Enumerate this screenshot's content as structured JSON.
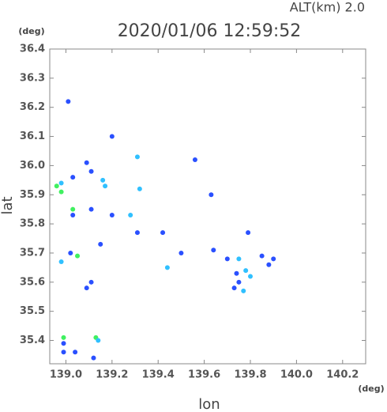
{
  "chart_data": {
    "type": "scatter",
    "title": "2020/01/06 12:59:52",
    "annotation": "ALT(km)  2.0",
    "y_unit": "(deg)",
    "x_unit": "(deg)",
    "y_label": "lat",
    "x_label": "lon",
    "xlim": [
      138.93,
      140.3
    ],
    "ylim": [
      35.32,
      36.4
    ],
    "xticks": [
      {
        "value": 139,
        "label": "139.0"
      },
      139.2,
      139.4,
      139.6,
      139.8,
      {
        "value": 140,
        "label": "140.0"
      },
      140.2
    ],
    "yticks": [
      35.4,
      35.5,
      35.6,
      35.7,
      35.8,
      35.9,
      {
        "value": 36,
        "label": "36.0"
      },
      36.1,
      36.2,
      36.3,
      36.4
    ],
    "x": [
      139.01,
      139.2,
      139.31,
      139.56,
      138.98,
      138.96,
      138.98,
      139.03,
      139.11,
      139.09,
      139.16,
      139.17,
      139.32,
      139.03,
      139.03,
      139.11,
      139.2,
      139.28,
      139.31,
      139.42,
      139.63,
      139.15,
      139.02,
      139.05,
      138.98,
      139.5,
      139.44,
      139.11,
      139.09,
      139.64,
      139.7,
      139.75,
      139.79,
      139.85,
      139.9,
      139.88,
      139.78,
      139.8,
      139.74,
      139.75,
      139.77,
      139.73,
      138.99,
      138.99,
      139.13,
      139.14,
      139.04,
      138.99,
      139.12
    ],
    "values": [
      36.22,
      36.1,
      36.03,
      36.02,
      35.94,
      35.93,
      35.91,
      35.96,
      35.98,
      36.01,
      35.95,
      35.93,
      35.92,
      35.85,
      35.83,
      35.85,
      35.83,
      35.83,
      35.77,
      35.77,
      35.9,
      35.73,
      35.7,
      35.69,
      35.67,
      35.7,
      35.65,
      35.6,
      35.58,
      35.71,
      35.68,
      35.68,
      35.77,
      35.69,
      35.68,
      35.66,
      35.64,
      35.62,
      35.63,
      35.6,
      35.57,
      35.58,
      35.41,
      35.39,
      35.41,
      35.4,
      35.36,
      35.36,
      35.34
    ],
    "colors": [
      "#2a50ff",
      "#2a50ff",
      "#30c0ff",
      "#2a50ff",
      "#30c0ff",
      "#40f060",
      "#40f060",
      "#2a50ff",
      "#2a50ff",
      "#2a50ff",
      "#30c0ff",
      "#30c0ff",
      "#30c0ff",
      "#40f060",
      "#2a50ff",
      "#2a50ff",
      "#2a50ff",
      "#30c0ff",
      "#2a50ff",
      "#2a50ff",
      "#2a50ff",
      "#2a50ff",
      "#2a50ff",
      "#40f060",
      "#30c0ff",
      "#2a50ff",
      "#30c0ff",
      "#2a50ff",
      "#2a50ff",
      "#2a50ff",
      "#2a50ff",
      "#30c0ff",
      "#2a50ff",
      "#2a50ff",
      "#2a50ff",
      "#2a50ff",
      "#30c0ff",
      "#30c0ff",
      "#2a50ff",
      "#2a50ff",
      "#30c0ff",
      "#2a50ff",
      "#40f060",
      "#2a50ff",
      "#40f060",
      "#30c0ff",
      "#2a50ff",
      "#2a50ff",
      "#2a50ff"
    ]
  }
}
